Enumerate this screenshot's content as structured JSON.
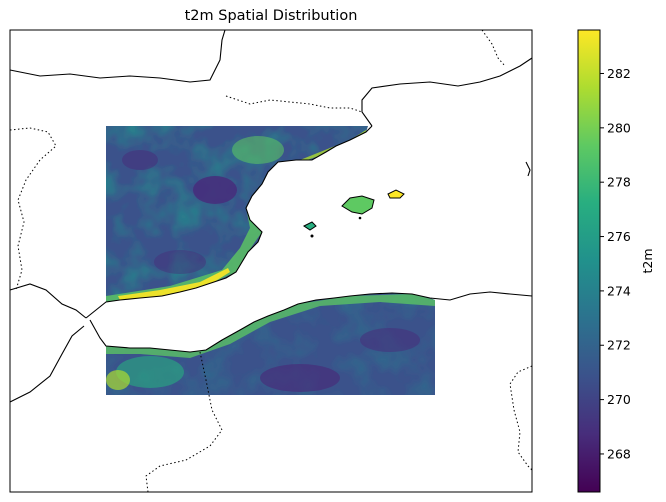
{
  "title": "t2m Spatial Distribution",
  "colorbar": {
    "label": "t2m",
    "min": 266.6,
    "max": 283.6,
    "ticks": [
      268,
      270,
      272,
      274,
      276,
      278,
      280,
      282
    ],
    "colormap": "viridis",
    "colormap_stops": [
      "#440154",
      "#472d7b",
      "#3b528b",
      "#2c728e",
      "#21918c",
      "#28ae80",
      "#5ec962",
      "#addc30",
      "#fde725"
    ]
  },
  "map": {
    "region": "Western Mediterranean: eastern Iberian Peninsula, Balearic Islands, northern Algeria",
    "features": [
      "coastlines",
      "country borders (dotted)",
      "t2m raster over land"
    ]
  }
}
